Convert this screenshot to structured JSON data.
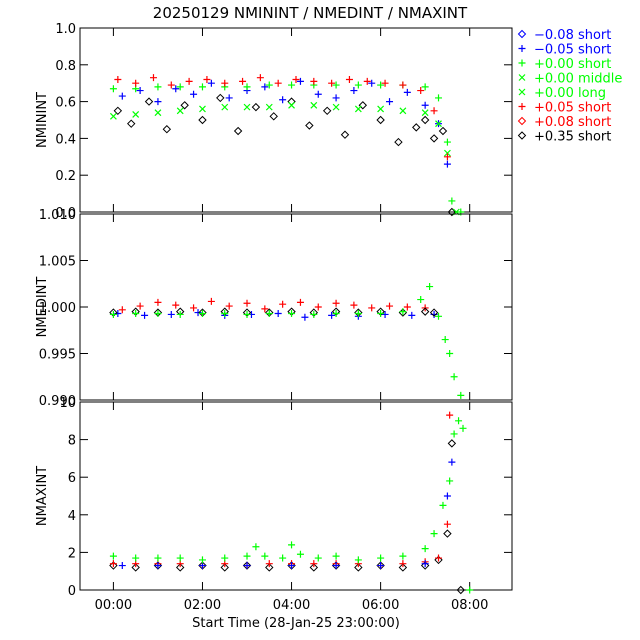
{
  "chart_data": {
    "type": "scatter",
    "title": "20250129  NMININT  /  NMEDINT  /  NMAXINT",
    "xlabel": "Start Time (28-Jan-25 23:00:00)",
    "x_unit": "hours since start",
    "xlim": [
      -0.75,
      8.95
    ],
    "x_ticks": [
      {
        "v": 0,
        "label": "00:00"
      },
      {
        "v": 2,
        "label": "02:00"
      },
      {
        "v": 4,
        "label": "04:00"
      },
      {
        "v": 6,
        "label": "06:00"
      },
      {
        "v": 8,
        "label": "08:00"
      }
    ],
    "legend": {
      "placement": "right",
      "entries": [
        {
          "label": "−0.08 short",
          "symbol": "diamond",
          "color": "#0000ff"
        },
        {
          "label": "−0.05 short",
          "symbol": "plus",
          "color": "#0000ff"
        },
        {
          "label": "+0.00 short",
          "symbol": "plus",
          "color": "#00ff00"
        },
        {
          "label": "+0.00 middle",
          "symbol": "x",
          "color": "#00ff00"
        },
        {
          "label": "+0.00 long",
          "symbol": "x",
          "color": "#00ff00"
        },
        {
          "label": "+0.05 short",
          "symbol": "plus",
          "color": "#ff0000"
        },
        {
          "label": "+0.08 short",
          "symbol": "diamond",
          "color": "#ff0000"
        },
        {
          "label": "+0.35 short",
          "symbol": "diamond",
          "color": "#000000"
        }
      ]
    },
    "panels": [
      {
        "id": "nminint",
        "ylabel": "NMININT",
        "ylim": [
          0.0,
          1.0
        ],
        "y_ticks": [
          "0.0",
          "0.2",
          "0.4",
          "0.6",
          "0.8",
          "1.0"
        ],
        "series": [
          {
            "name": "+0.35 short",
            "x": [
              0.1,
              0.4,
              0.8,
              1.2,
              1.6,
              2.0,
              2.4,
              2.8,
              3.2,
              3.6,
              4.0,
              4.4,
              4.8,
              5.2,
              5.6,
              6.0,
              6.4,
              6.8,
              7.0,
              7.2,
              7.4,
              7.6
            ],
            "y": [
              0.55,
              0.48,
              0.6,
              0.45,
              0.58,
              0.5,
              0.62,
              0.44,
              0.57,
              0.52,
              0.6,
              0.47,
              0.55,
              0.42,
              0.58,
              0.5,
              0.38,
              0.46,
              0.5,
              0.4,
              0.44,
              0.0
            ]
          },
          {
            "name": "−0.05 short",
            "x": [
              0.2,
              0.6,
              1.0,
              1.4,
              1.8,
              2.2,
              2.6,
              3.0,
              3.4,
              3.8,
              4.2,
              4.6,
              5.0,
              5.4,
              5.8,
              6.2,
              6.6,
              7.0,
              7.3,
              7.5
            ],
            "y": [
              0.63,
              0.66,
              0.6,
              0.67,
              0.64,
              0.7,
              0.62,
              0.66,
              0.68,
              0.61,
              0.71,
              0.64,
              0.62,
              0.66,
              0.7,
              0.6,
              0.65,
              0.58,
              0.48,
              0.26
            ]
          },
          {
            "name": "+0.00 long",
            "x": [
              0.0,
              0.5,
              1.0,
              1.5,
              2.0,
              2.5,
              3.0,
              3.5,
              4.0,
              4.5,
              5.0,
              5.5,
              6.0,
              6.5,
              7.0,
              7.3,
              7.5,
              7.7
            ],
            "y": [
              0.52,
              0.53,
              0.54,
              0.55,
              0.56,
              0.57,
              0.57,
              0.57,
              0.58,
              0.58,
              0.57,
              0.56,
              0.56,
              0.55,
              0.54,
              0.48,
              0.32,
              0.0
            ]
          },
          {
            "name": "+0.00 short",
            "x": [
              0.0,
              0.5,
              1.0,
              1.5,
              2.0,
              2.5,
              3.0,
              3.5,
              4.0,
              4.5,
              5.0,
              5.5,
              6.0,
              6.5,
              7.0,
              7.3,
              7.5,
              7.6,
              7.8
            ],
            "y": [
              0.67,
              0.67,
              0.68,
              0.68,
              0.68,
              0.68,
              0.68,
              0.69,
              0.69,
              0.69,
              0.69,
              0.69,
              0.69,
              0.69,
              0.68,
              0.62,
              0.38,
              0.06,
              0.0
            ]
          },
          {
            "name": "+0.05 short",
            "x": [
              0.1,
              0.5,
              0.9,
              1.3,
              1.7,
              2.1,
              2.5,
              2.9,
              3.3,
              3.7,
              4.1,
              4.5,
              4.9,
              5.3,
              5.7,
              6.1,
              6.5,
              6.9,
              7.2,
              7.5
            ],
            "y": [
              0.72,
              0.7,
              0.73,
              0.69,
              0.71,
              0.72,
              0.7,
              0.71,
              0.73,
              0.7,
              0.72,
              0.71,
              0.7,
              0.72,
              0.71,
              0.7,
              0.69,
              0.66,
              0.55,
              0.3
            ]
          }
        ]
      },
      {
        "id": "nmedint",
        "ylabel": "NMEDINT",
        "ylim": [
          0.99,
          1.01
        ],
        "y_ticks": [
          "0.990",
          "0.995",
          "1.000",
          "1.005",
          "1.010"
        ],
        "series": [
          {
            "name": "−0.05 short",
            "x": [
              0.1,
              0.7,
              1.3,
              1.9,
              2.5,
              3.1,
              3.7,
              4.3,
              4.9,
              5.5,
              6.1,
              6.7,
              7.2
            ],
            "y": [
              0.9993,
              0.9991,
              0.9992,
              0.9994,
              0.9991,
              0.9992,
              0.9993,
              0.9989,
              0.9991,
              0.999,
              0.9992,
              0.9991,
              0.9992
            ]
          },
          {
            "name": "+0.05 short",
            "x": [
              0.2,
              0.6,
              1.0,
              1.4,
              1.8,
              2.2,
              2.6,
              3.0,
              3.4,
              3.8,
              4.2,
              4.6,
              5.0,
              5.4,
              5.8,
              6.2,
              6.6,
              7.0
            ],
            "y": [
              0.9997,
              1.0001,
              1.0005,
              1.0002,
              0.9999,
              1.0006,
              1.0001,
              1.0004,
              0.9998,
              1.0003,
              1.0005,
              1.0,
              1.0004,
              1.0002,
              0.9999,
              1.0001,
              1.0,
              0.9999
            ]
          },
          {
            "name": "+0.35 short",
            "x": [
              0.0,
              0.5,
              1.0,
              1.5,
              2.0,
              2.5,
              3.0,
              3.5,
              4.0,
              4.5,
              5.0,
              5.5,
              6.0,
              6.5,
              7.0,
              7.2
            ],
            "y": [
              0.9994,
              0.9995,
              0.9994,
              0.9995,
              0.9994,
              0.9995,
              0.9994,
              0.9994,
              0.9995,
              0.9994,
              0.9995,
              0.9994,
              0.9995,
              0.9994,
              0.9995,
              0.9994
            ]
          },
          {
            "name": "+0.00 short",
            "x": [
              0.0,
              0.5,
              1.0,
              1.5,
              2.0,
              2.5,
              3.0,
              3.5,
              4.0,
              4.5,
              5.0,
              5.5,
              6.0,
              6.5,
              6.9,
              7.1,
              7.3,
              7.45,
              7.55,
              7.65,
              7.8
            ],
            "y": [
              0.9992,
              0.9993,
              0.9993,
              0.9992,
              0.9993,
              0.9993,
              0.9992,
              0.9993,
              0.9993,
              0.9992,
              0.9993,
              0.9993,
              0.9993,
              0.9995,
              1.0008,
              1.0022,
              0.999,
              0.9965,
              0.995,
              0.9925,
              0.9905
            ]
          }
        ]
      },
      {
        "id": "nmaxint",
        "ylabel": "NMAXINT",
        "ylim": [
          0,
          10
        ],
        "y_ticks": [
          "0",
          "2",
          "4",
          "6",
          "8",
          "10"
        ],
        "series": [
          {
            "name": "+0.35 short",
            "x": [
              0.0,
              0.5,
              1.0,
              1.5,
              2.0,
              2.5,
              3.0,
              3.5,
              4.0,
              4.5,
              5.0,
              5.5,
              6.0,
              6.5,
              7.0,
              7.3,
              7.5,
              7.6,
              7.8
            ],
            "y": [
              1.3,
              1.2,
              1.3,
              1.2,
              1.3,
              1.2,
              1.3,
              1.2,
              1.3,
              1.2,
              1.3,
              1.2,
              1.3,
              1.2,
              1.3,
              1.6,
              3.0,
              7.8,
              0.0
            ]
          },
          {
            "name": "+0.05 short",
            "x": [
              0.0,
              0.5,
              1.0,
              1.5,
              2.0,
              2.5,
              3.0,
              3.5,
              4.0,
              4.5,
              5.0,
              5.5,
              6.0,
              6.5,
              7.0,
              7.3,
              7.5,
              7.55
            ],
            "y": [
              1.4,
              1.4,
              1.4,
              1.4,
              1.3,
              1.4,
              1.3,
              1.4,
              1.4,
              1.4,
              1.4,
              1.4,
              1.3,
              1.4,
              1.5,
              1.7,
              3.5,
              9.3
            ]
          },
          {
            "name": "−0.05 short",
            "x": [
              0.2,
              1.0,
              2.0,
              3.0,
              4.0,
              5.0,
              6.0,
              7.0,
              7.5,
              7.6
            ],
            "y": [
              1.3,
              1.3,
              1.3,
              1.3,
              1.3,
              1.3,
              1.3,
              1.4,
              5.0,
              6.8
            ]
          },
          {
            "name": "+0.00 short",
            "x": [
              0.0,
              0.5,
              1.0,
              1.5,
              2.0,
              2.5,
              3.0,
              3.2,
              3.4,
              3.8,
              4.0,
              4.2,
              4.6,
              5.0,
              5.5,
              6.0,
              6.5,
              7.0,
              7.2,
              7.4,
              7.55,
              7.65,
              7.75,
              7.85,
              8.0
            ],
            "y": [
              1.8,
              1.7,
              1.7,
              1.7,
              1.6,
              1.7,
              1.8,
              2.3,
              1.8,
              1.7,
              2.4,
              1.9,
              1.7,
              1.8,
              1.6,
              1.7,
              1.8,
              2.2,
              3.0,
              4.5,
              5.8,
              8.3,
              9.0,
              8.6,
              0.0
            ]
          }
        ]
      }
    ]
  }
}
